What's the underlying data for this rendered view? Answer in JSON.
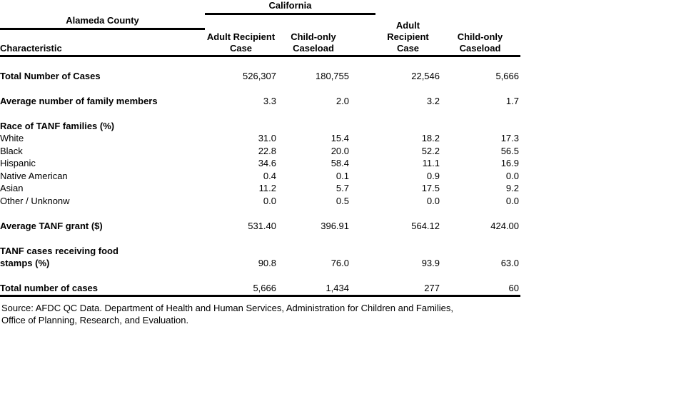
{
  "table": {
    "characteristic_header": "Characteristic",
    "groups": [
      {
        "label": "California"
      },
      {
        "label": "Alameda County"
      }
    ],
    "columns": [
      {
        "line1": "Adult Recipient",
        "line2": "Case"
      },
      {
        "line1": "Child-only",
        "line2": "Caseload"
      },
      {
        "line1": "Adult Recipient",
        "line2": "Case"
      },
      {
        "line1": "Child-only",
        "line2": "Caseload"
      }
    ],
    "rows": [
      {
        "label": "Total Number of Cases",
        "values": [
          "526,307",
          "180,755",
          "22,546",
          "5,666"
        ]
      },
      {
        "label": "Average number of family members",
        "values": [
          "3.3",
          "2.0",
          "3.2",
          "1.7"
        ]
      },
      {
        "label": "Race of TANF families (%)",
        "values": [
          "",
          "",
          "",
          ""
        ]
      },
      {
        "label": "White",
        "values": [
          "31.0",
          "15.4",
          "18.2",
          "17.3"
        ]
      },
      {
        "label": "Black",
        "values": [
          "22.8",
          "20.0",
          "52.2",
          "56.5"
        ]
      },
      {
        "label": "Hispanic",
        "values": [
          "34.6",
          "58.4",
          "11.1",
          "16.9"
        ]
      },
      {
        "label": "Native American",
        "values": [
          "0.4",
          "0.1",
          "0.9",
          "0.0"
        ]
      },
      {
        "label": "Asian",
        "values": [
          "11.2",
          "5.7",
          "17.5",
          "9.2"
        ]
      },
      {
        "label": "Other / Unknonw",
        "values": [
          "0.0",
          "0.5",
          "0.0",
          "0.0"
        ]
      },
      {
        "label": "Average TANF grant ($)",
        "values": [
          "531.40",
          "396.91",
          "564.12",
          "424.00"
        ]
      },
      {
        "label": "TANF cases receiving food",
        "values": [
          "",
          "",
          "",
          ""
        ]
      },
      {
        "label": "stamps (%)",
        "values": [
          "90.8",
          "76.0",
          "93.9",
          "63.0"
        ]
      },
      {
        "label": "Total number of cases",
        "values": [
          "5,666",
          "1,434",
          "277",
          "60"
        ]
      }
    ]
  },
  "source_note": {
    "line1": "Source: AFDC QC Data. Department of Health and Human Services, Administration for Children and Families,",
    "line2": "Office of Planning, Research, and Evaluation."
  },
  "colors": {
    "text": "#000000",
    "rule": "#000000",
    "background": "#ffffff"
  }
}
